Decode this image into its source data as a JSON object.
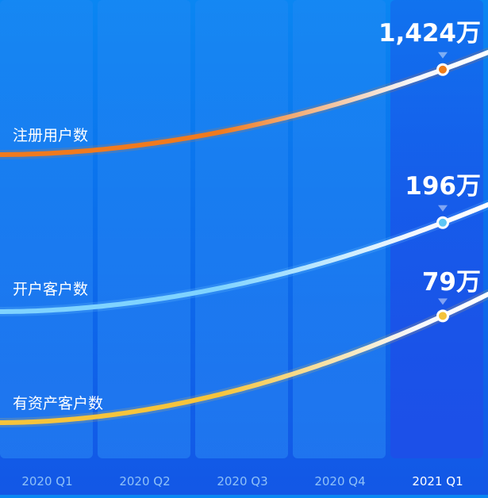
{
  "chart_data": {
    "type": "line",
    "categories": [
      "2020 Q1",
      "2020 Q2",
      "2020 Q3",
      "2020 Q4",
      "2021 Q1"
    ],
    "highlighted_category": "2021 Q1",
    "series": [
      {
        "name": "注册用户数",
        "final_label": "1,424万",
        "line_color_start": "#f07a1e",
        "line_color_end": "#ffffff",
        "marker_color": "#ef7d1a"
      },
      {
        "name": "开户客户数",
        "final_label": "196万",
        "line_color_start": "#7fd3ff",
        "line_color_end": "#ffffff",
        "marker_color": "#5cc6f5"
      },
      {
        "name": "有资产客户数",
        "final_label": "79万",
        "line_color_start": "#f6c43c",
        "line_color_end": "#ffffff",
        "marker_color": "#f4c23a"
      }
    ],
    "legend": "inline-left",
    "grid": false
  },
  "colors": {
    "background_top": "#0a86f2",
    "background_bottom": "#1357e6",
    "column_normal": "#2a8af5",
    "column_highlight": "#1d4fe8",
    "tick_color": "#8fc1f7",
    "tick_highlight_color": "#ffffff"
  }
}
